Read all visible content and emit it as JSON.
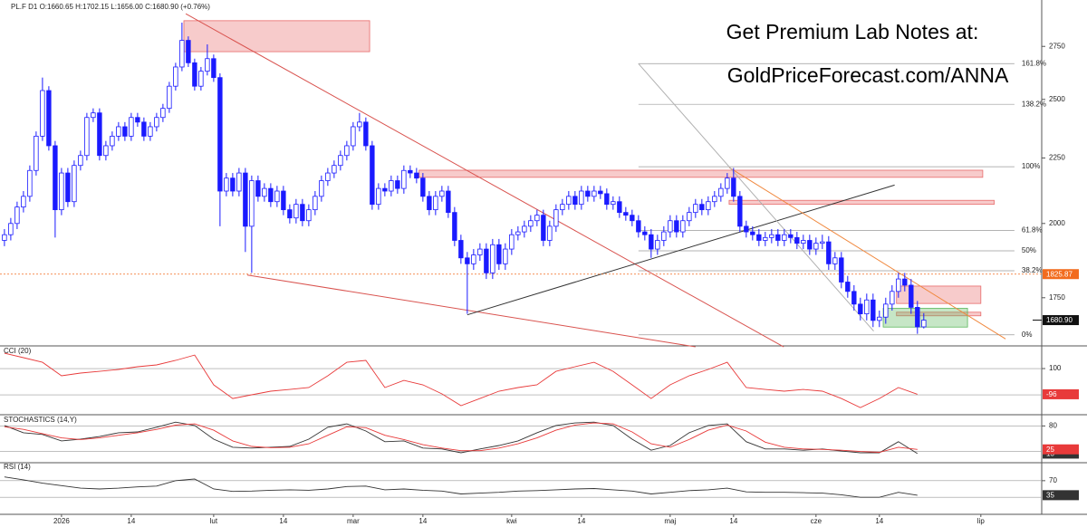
{
  "chart_data": [
    {
      "type": "candlestick",
      "title": "PL.F D1 O:1660.65 H:1702.15 L:1656.00 C:1680.90 (+0.76%)",
      "annotations": [
        "Get Premium Lab Notes at:",
        "GoldPriceForecast.com/ANNA"
      ],
      "open": [
        1940,
        1960,
        2000,
        2060,
        2100,
        2200,
        2340,
        2540,
        2300,
        2050,
        2190,
        2080,
        2220,
        2260,
        2420,
        2440,
        2260,
        2300,
        2340,
        2380,
        2340,
        2420,
        2400,
        2340,
        2380,
        2420,
        2460,
        2560,
        2650,
        2780,
        2670,
        2560,
        2630,
        2690,
        2600,
        2120,
        2170,
        2120,
        2190,
        1990,
        2160,
        2100,
        2130,
        2080,
        2120,
        2050,
        2020,
        2070,
        2010,
        2050,
        2100,
        2160,
        2190,
        2220,
        2260,
        2300,
        2380,
        2400,
        2300,
        2070,
        2130,
        2120,
        2160,
        2130,
        2200,
        2190,
        2170,
        2100,
        2050,
        2100,
        2120,
        2040,
        1940,
        1880,
        1860,
        1890,
        1910,
        1830,
        1925,
        1860,
        1910,
        1960,
        1970,
        1990,
        2010,
        2030,
        1940,
        1990,
        2050,
        2070,
        2100,
        2070,
        2120,
        2100,
        2120,
        2110,
        2070,
        2080,
        2040,
        2030,
        2010,
        1970,
        1960,
        1910,
        1940,
        1970,
        2010,
        1970,
        2010,
        2040,
        2070,
        2050,
        2080,
        2100,
        2130,
        2170,
        2100,
        1990,
        1970,
        1960,
        1940,
        1950,
        1960,
        1940,
        1960,
        1950,
        1930,
        1940,
        1910,
        1930,
        1935,
        1860,
        1880,
        1800,
        1770,
        1730,
        1700,
        1743,
        1680,
        1690,
        1730,
        1770,
        1810,
        1790,
        1720,
        1660.65
      ],
      "high": [
        1980,
        2020,
        2080,
        2120,
        2220,
        2360,
        2600,
        2560,
        2320,
        2210,
        2210,
        2240,
        2280,
        2440,
        2460,
        2460,
        2320,
        2360,
        2400,
        2400,
        2440,
        2440,
        2420,
        2400,
        2440,
        2480,
        2580,
        2670,
        2870,
        2800,
        2690,
        2650,
        2760,
        2710,
        2620,
        2190,
        2190,
        2210,
        2210,
        2180,
        2180,
        2150,
        2150,
        2140,
        2140,
        2070,
        2090,
        2090,
        2070,
        2120,
        2180,
        2210,
        2240,
        2280,
        2320,
        2400,
        2440,
        2420,
        2320,
        2150,
        2150,
        2180,
        2180,
        2220,
        2220,
        2210,
        2190,
        2120,
        2120,
        2140,
        2140,
        2060,
        1960,
        1900,
        1910,
        1930,
        1930,
        1945,
        1945,
        1930,
        1980,
        1990,
        2010,
        2030,
        2050,
        2050,
        2010,
        2070,
        2090,
        2120,
        2120,
        2140,
        2140,
        2140,
        2140,
        2130,
        2100,
        2100,
        2060,
        2050,
        2030,
        1990,
        1980,
        1960,
        1990,
        2030,
        2030,
        2030,
        2060,
        2090,
        2090,
        2100,
        2120,
        2150,
        2190,
        2210,
        2120,
        2010,
        1990,
        1980,
        1970,
        1980,
        1980,
        1980,
        1980,
        1970,
        1960,
        1960,
        1950,
        1960,
        1955,
        1900,
        1900,
        1820,
        1790,
        1750,
        1763,
        1763,
        1710,
        1750,
        1790,
        1830,
        1830,
        1810,
        1740,
        1702.15
      ],
      "low": [
        1920,
        1940,
        1980,
        2040,
        2080,
        2180,
        2320,
        2280,
        1950,
        2030,
        2060,
        2060,
        2200,
        2240,
        2400,
        2240,
        2240,
        2280,
        2320,
        2320,
        2320,
        2380,
        2320,
        2320,
        2360,
        2400,
        2440,
        2540,
        2630,
        2650,
        2540,
        2540,
        2610,
        2580,
        1990,
        2100,
        2100,
        2100,
        1900,
        1830,
        2080,
        2080,
        2060,
        2060,
        2030,
        2000,
        2000,
        1990,
        1990,
        2030,
        2080,
        2140,
        2170,
        2200,
        2240,
        2280,
        2360,
        2280,
        2050,
        2050,
        2100,
        2100,
        2110,
        2110,
        2170,
        2150,
        2080,
        2030,
        2030,
        2080,
        2020,
        1920,
        1860,
        1700,
        1840,
        1870,
        1810,
        1810,
        1840,
        1840,
        1890,
        1940,
        1950,
        1970,
        1990,
        1920,
        1920,
        1970,
        2030,
        2050,
        2050,
        2050,
        2080,
        2080,
        2090,
        2050,
        2050,
        2020,
        2010,
        1990,
        1950,
        1940,
        1880,
        1890,
        1920,
        1950,
        1950,
        1950,
        1990,
        2020,
        2030,
        2030,
        2060,
        2080,
        2110,
        2080,
        1970,
        1950,
        1940,
        1920,
        1920,
        1930,
        1920,
        1920,
        1930,
        1910,
        1910,
        1890,
        1890,
        1910,
        1840,
        1840,
        1780,
        1750,
        1710,
        1680,
        1680,
        1660,
        1660,
        1670,
        1710,
        1750,
        1770,
        1700,
        1640,
        1656
      ],
      "close": [
        1960,
        2000,
        2060,
        2100,
        2200,
        2340,
        2540,
        2300,
        2050,
        2190,
        2080,
        2220,
        2260,
        2420,
        2440,
        2260,
        2300,
        2340,
        2380,
        2340,
        2420,
        2400,
        2340,
        2380,
        2420,
        2460,
        2560,
        2650,
        2780,
        2670,
        2560,
        2630,
        2690,
        2600,
        2120,
        2170,
        2120,
        2190,
        1990,
        2160,
        2100,
        2130,
        2080,
        2120,
        2050,
        2020,
        2070,
        2010,
        2050,
        2100,
        2160,
        2190,
        2220,
        2260,
        2300,
        2380,
        2400,
        2300,
        2070,
        2130,
        2120,
        2160,
        2130,
        2200,
        2190,
        2170,
        2100,
        2050,
        2100,
        2120,
        2040,
        1940,
        1880,
        1860,
        1890,
        1910,
        1830,
        1925,
        1860,
        1910,
        1960,
        1970,
        1990,
        2010,
        2030,
        1940,
        1990,
        2050,
        2070,
        2100,
        2070,
        2120,
        2100,
        2120,
        2110,
        2070,
        2080,
        2040,
        2030,
        2010,
        1970,
        1960,
        1910,
        1940,
        1970,
        2010,
        1970,
        2010,
        2040,
        2070,
        2050,
        2080,
        2100,
        2130,
        2170,
        2100,
        1990,
        1970,
        1960,
        1940,
        1950,
        1960,
        1940,
        1960,
        1950,
        1930,
        1940,
        1910,
        1930,
        1935,
        1860,
        1880,
        1800,
        1770,
        1730,
        1700,
        1743,
        1680,
        1690,
        1730,
        1770,
        1810,
        1790,
        1720,
        1660.65,
        1680.9
      ],
      "up_color": "#ffffff",
      "down_color": "#1a1aff",
      "edge_color": "#1a1aff",
      "log_scale": true,
      "xlim": [
        -0.7,
        163.6
      ],
      "ylim": [
        1610,
        2965
      ],
      "yticks": [
        1750,
        2000,
        2250,
        2500,
        2750
      ],
      "xticks": [
        {
          "value": 9,
          "label": "2026"
        },
        {
          "value": 20,
          "label": "14"
        },
        {
          "value": 33,
          "label": "lut"
        },
        {
          "value": 44,
          "label": "14"
        },
        {
          "value": 55,
          "label": "mar"
        },
        {
          "value": 66,
          "label": "14"
        },
        {
          "value": 80,
          "label": "kwi"
        },
        {
          "value": 91,
          "label": "14"
        },
        {
          "value": 105,
          "label": "maj"
        },
        {
          "value": 115,
          "label": "14"
        },
        {
          "value": 128,
          "label": "cze"
        },
        {
          "value": 138,
          "label": "14"
        },
        {
          "value": 154,
          "label": "lip"
        }
      ],
      "zones": [
        {
          "x": [
            28.3,
            57.6
          ],
          "y": [
            2724,
            2880
          ],
          "color": "#e86a6a"
        },
        {
          "x": [
            65.4,
            154.3
          ],
          "y": [
            2173,
            2201
          ],
          "color": "#e86a6a"
        },
        {
          "x": [
            114.3,
            156.1
          ],
          "y": [
            2070,
            2085
          ],
          "color": "#e86a6a"
        },
        {
          "x": [
            140.7,
            154
          ],
          "y": [
            1732,
            1787
          ],
          "color": "#e86a6a"
        },
        {
          "x": [
            140.7,
            154
          ],
          "y": [
            1694,
            1705
          ],
          "color": "#e86a6a"
        },
        {
          "x": [
            138.6,
            151.9
          ],
          "y": [
            1660,
            1717
          ],
          "color": "#5cb85c"
        }
      ],
      "trendlines": [
        {
          "x": [
            28.6,
            122.9
          ],
          "y": [
            2916,
            1602
          ],
          "color": "#d9534f"
        },
        {
          "x": [
            38.3,
            109
          ],
          "y": [
            1823,
            1602
          ],
          "color": "#d9534f"
        },
        {
          "x": [
            73,
            140.4
          ],
          "y": [
            1697,
            2143
          ],
          "color": "#333333"
        },
        {
          "x": [
            114.3,
            157.9
          ],
          "y": [
            2212,
            1625
          ],
          "color": "#f0883e"
        },
        {
          "x": [
            100,
            137.1
          ],
          "y": [
            2666,
            1648
          ],
          "color": "#b0b0b0"
        }
      ],
      "fib": {
        "x": [
          100,
          159.3
        ],
        "color": "#9a9a9a",
        "levels": [
          {
            "value": 2666,
            "label": "161.8%"
          },
          {
            "value": 2478,
            "label": "138.2%"
          },
          {
            "value": 2215,
            "label": "100%"
          },
          {
            "value": 1975,
            "label": "61.8%"
          },
          {
            "value": 1904,
            "label": "50%"
          },
          {
            "value": 1837,
            "label": "38.2%"
          },
          {
            "value": 1637,
            "label": "0%"
          }
        ]
      },
      "reference_line": {
        "value": 1825.87,
        "color": "#f26b1d"
      },
      "price_marker": {
        "value": 1680.9,
        "label": "1680.90",
        "color": "#111111"
      }
    },
    {
      "type": "line",
      "title": "CCI (20)",
      "xlim": [
        -0.7,
        163.6
      ],
      "ylim": [
        -231,
        252
      ],
      "yticks": [
        100
      ],
      "levels": [
        100,
        -100
      ],
      "x": [
        0,
        3,
        6,
        9,
        12,
        15,
        18,
        21,
        24,
        27,
        30,
        33,
        36,
        39,
        42,
        45,
        48,
        51,
        54,
        57,
        60,
        63,
        66,
        69,
        72,
        75,
        78,
        81,
        84,
        87,
        90,
        93,
        96,
        99,
        102,
        105,
        108,
        111,
        114,
        117,
        120,
        123,
        126,
        129,
        132,
        135,
        138,
        141,
        144
      ],
      "series": [
        {
          "color": "#e83a3a",
          "values": [
            217,
            183,
            148,
            45,
            66,
            79,
            93,
            114,
            128,
            162,
            203,
            -24,
            -128,
            -100,
            -72,
            -59,
            -45,
            45,
            148,
            162,
            -45,
            10,
            -24,
            -93,
            -183,
            -128,
            -72,
            -45,
            -24,
            79,
            114,
            148,
            79,
            -24,
            -128,
            -24,
            45,
            93,
            148,
            -45,
            -59,
            -72,
            -59,
            -72,
            -128,
            -197,
            -128,
            -45,
            -96
          ]
        }
      ]
    },
    {
      "type": "line",
      "title": "STOCHASTICS (14,Y)",
      "xlim": [
        -0.7,
        163.6
      ],
      "ylim": [
        0,
        100
      ],
      "yticks": [
        80
      ],
      "levels": [
        80,
        20
      ],
      "x": [
        0,
        3,
        6,
        9,
        12,
        15,
        18,
        21,
        24,
        27,
        30,
        33,
        36,
        39,
        42,
        45,
        48,
        51,
        54,
        57,
        60,
        63,
        66,
        69,
        72,
        75,
        78,
        81,
        84,
        87,
        90,
        93,
        96,
        99,
        102,
        105,
        108,
        111,
        114,
        117,
        120,
        123,
        126,
        129,
        132,
        135,
        138,
        141,
        144
      ],
      "series": [
        {
          "color": "#333333",
          "values": [
            81,
            64,
            60,
            45,
            49,
            55,
            64,
            66,
            77,
            89,
            81,
            49,
            30,
            28,
            30,
            32,
            49,
            77,
            85,
            68,
            43,
            45,
            28,
            26,
            17,
            26,
            34,
            45,
            64,
            81,
            87,
            89,
            81,
            49,
            23,
            34,
            64,
            81,
            85,
            43,
            26,
            26,
            23,
            26,
            21,
            17,
            17,
            43,
            15
          ]
        },
        {
          "color": "#e83a3a",
          "values": [
            78,
            72,
            62,
            52,
            48,
            52,
            58,
            64,
            72,
            82,
            85,
            70,
            45,
            32,
            29,
            30,
            38,
            58,
            78,
            76,
            58,
            48,
            36,
            28,
            22,
            22,
            28,
            38,
            52,
            70,
            82,
            87,
            85,
            66,
            38,
            30,
            48,
            70,
            82,
            68,
            42,
            30,
            26,
            25,
            23,
            20,
            18,
            30,
            25
          ]
        }
      ]
    },
    {
      "type": "line",
      "title": "RSI (14)",
      "xlim": [
        -0.7,
        163.6
      ],
      "ylim": [
        -9,
        109
      ],
      "yticks": [
        70
      ],
      "levels": [
        70,
        30
      ],
      "x": [
        0,
        3,
        6,
        9,
        12,
        15,
        18,
        21,
        24,
        27,
        30,
        33,
        36,
        39,
        42,
        45,
        48,
        51,
        54,
        57,
        60,
        63,
        66,
        69,
        72,
        75,
        78,
        81,
        84,
        87,
        90,
        93,
        96,
        99,
        102,
        105,
        108,
        111,
        114,
        117,
        120,
        123,
        126,
        129,
        132,
        135,
        138,
        141,
        144
      ],
      "series": [
        {
          "color": "#333333",
          "values": [
            79,
            72,
            64,
            58,
            52,
            50,
            52,
            55,
            57,
            70,
            74,
            50,
            44,
            45,
            47,
            48,
            47,
            50,
            56,
            57,
            48,
            50,
            47,
            45,
            38,
            40,
            42,
            45,
            46,
            48,
            50,
            51,
            48,
            45,
            38,
            42,
            46,
            48,
            52,
            43,
            42,
            42,
            41,
            40,
            36,
            30,
            30,
            42,
            35
          ]
        }
      ]
    }
  ]
}
